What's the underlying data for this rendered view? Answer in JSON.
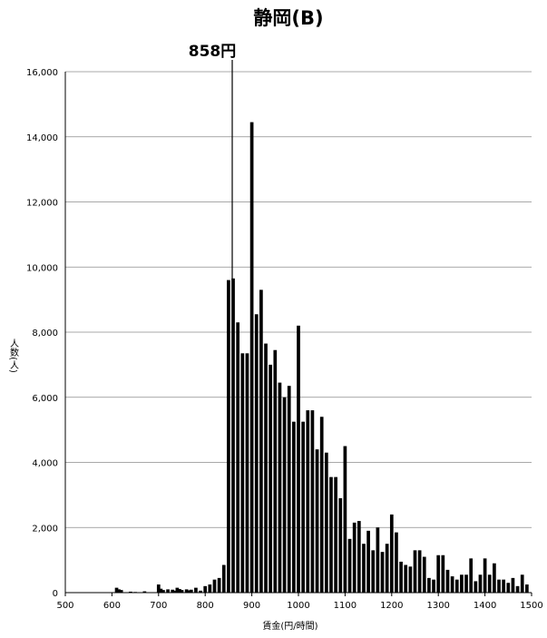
{
  "chart_data": {
    "type": "bar",
    "title": "静岡(B)",
    "xlabel": "賃金(円/時間)",
    "ylabel": "人数(人)",
    "xlim": [
      500,
      1500
    ],
    "ylim": [
      0,
      16000
    ],
    "x_ticks": [
      "500",
      "600",
      "700",
      "800",
      "900",
      "1000",
      "1100",
      "1200",
      "1300",
      "1400",
      "1500"
    ],
    "y_ticks": [
      "0",
      "2,000",
      "4,000",
      "6,000",
      "8,000",
      "10,000",
      "12,000",
      "14,000",
      "16,000"
    ],
    "grid": "horizontal",
    "annotation": {
      "label": "858円",
      "x": 858
    },
    "bar_color": "#000000",
    "bars": [
      {
        "x": 610,
        "y": 150
      },
      {
        "x": 615,
        "y": 100
      },
      {
        "x": 620,
        "y": 80
      },
      {
        "x": 640,
        "y": 30
      },
      {
        "x": 650,
        "y": 20
      },
      {
        "x": 670,
        "y": 40
      },
      {
        "x": 700,
        "y": 250
      },
      {
        "x": 705,
        "y": 120
      },
      {
        "x": 710,
        "y": 80
      },
      {
        "x": 720,
        "y": 100
      },
      {
        "x": 730,
        "y": 90
      },
      {
        "x": 735,
        "y": 60
      },
      {
        "x": 740,
        "y": 150
      },
      {
        "x": 745,
        "y": 110
      },
      {
        "x": 750,
        "y": 80
      },
      {
        "x": 760,
        "y": 100
      },
      {
        "x": 765,
        "y": 70
      },
      {
        "x": 770,
        "y": 90
      },
      {
        "x": 780,
        "y": 150
      },
      {
        "x": 790,
        "y": 60
      },
      {
        "x": 800,
        "y": 200
      },
      {
        "x": 810,
        "y": 250
      },
      {
        "x": 820,
        "y": 400
      },
      {
        "x": 830,
        "y": 450
      },
      {
        "x": 840,
        "y": 850
      },
      {
        "x": 850,
        "y": 9600
      },
      {
        "x": 860,
        "y": 9650
      },
      {
        "x": 870,
        "y": 8300
      },
      {
        "x": 880,
        "y": 7350
      },
      {
        "x": 890,
        "y": 7350
      },
      {
        "x": 900,
        "y": 14450
      },
      {
        "x": 910,
        "y": 8550
      },
      {
        "x": 920,
        "y": 9300
      },
      {
        "x": 930,
        "y": 7650
      },
      {
        "x": 940,
        "y": 7000
      },
      {
        "x": 950,
        "y": 7450
      },
      {
        "x": 960,
        "y": 6450
      },
      {
        "x": 970,
        "y": 6000
      },
      {
        "x": 980,
        "y": 6350
      },
      {
        "x": 990,
        "y": 5250
      },
      {
        "x": 1000,
        "y": 8200
      },
      {
        "x": 1010,
        "y": 5250
      },
      {
        "x": 1020,
        "y": 5600
      },
      {
        "x": 1030,
        "y": 5600
      },
      {
        "x": 1040,
        "y": 4400
      },
      {
        "x": 1050,
        "y": 5400
      },
      {
        "x": 1060,
        "y": 4300
      },
      {
        "x": 1070,
        "y": 3550
      },
      {
        "x": 1080,
        "y": 3550
      },
      {
        "x": 1090,
        "y": 2900
      },
      {
        "x": 1100,
        "y": 4500
      },
      {
        "x": 1110,
        "y": 1650
      },
      {
        "x": 1120,
        "y": 2150
      },
      {
        "x": 1130,
        "y": 2200
      },
      {
        "x": 1140,
        "y": 1500
      },
      {
        "x": 1150,
        "y": 1900
      },
      {
        "x": 1160,
        "y": 1300
      },
      {
        "x": 1170,
        "y": 2000
      },
      {
        "x": 1180,
        "y": 1250
      },
      {
        "x": 1190,
        "y": 1500
      },
      {
        "x": 1200,
        "y": 2400
      },
      {
        "x": 1210,
        "y": 1850
      },
      {
        "x": 1220,
        "y": 950
      },
      {
        "x": 1230,
        "y": 850
      },
      {
        "x": 1240,
        "y": 800
      },
      {
        "x": 1250,
        "y": 1300
      },
      {
        "x": 1260,
        "y": 1300
      },
      {
        "x": 1270,
        "y": 1100
      },
      {
        "x": 1280,
        "y": 450
      },
      {
        "x": 1290,
        "y": 400
      },
      {
        "x": 1300,
        "y": 1150
      },
      {
        "x": 1310,
        "y": 1150
      },
      {
        "x": 1320,
        "y": 700
      },
      {
        "x": 1330,
        "y": 500
      },
      {
        "x": 1340,
        "y": 400
      },
      {
        "x": 1350,
        "y": 550
      },
      {
        "x": 1360,
        "y": 550
      },
      {
        "x": 1370,
        "y": 1050
      },
      {
        "x": 1380,
        "y": 350
      },
      {
        "x": 1390,
        "y": 550
      },
      {
        "x": 1400,
        "y": 1050
      },
      {
        "x": 1410,
        "y": 550
      },
      {
        "x": 1420,
        "y": 900
      },
      {
        "x": 1430,
        "y": 400
      },
      {
        "x": 1440,
        "y": 400
      },
      {
        "x": 1450,
        "y": 300
      },
      {
        "x": 1460,
        "y": 450
      },
      {
        "x": 1470,
        "y": 200
      },
      {
        "x": 1480,
        "y": 550
      },
      {
        "x": 1490,
        "y": 250
      }
    ]
  }
}
